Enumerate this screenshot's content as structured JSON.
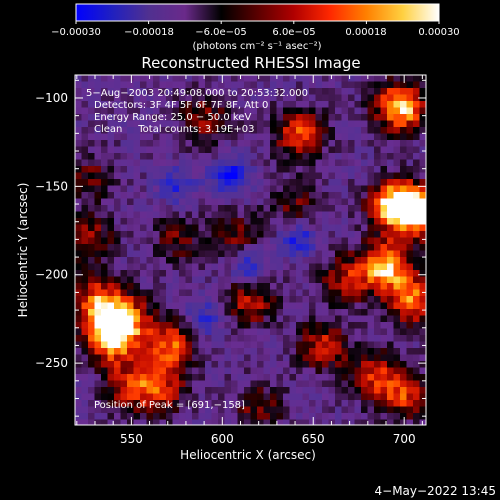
{
  "chart_data": {
    "type": "heatmap",
    "title": "Reconstructed RHESSI Image",
    "xlabel": "Heliocentric X (arcsec)",
    "ylabel": "Heliocentric Y (arcsec)",
    "xlim": [
      519,
      712
    ],
    "ylim": [
      -285,
      -87
    ],
    "x_ticks": [
      550,
      600,
      650,
      700
    ],
    "y_ticks": [
      -100,
      -150,
      -200,
      -250
    ],
    "x_tick_labels": [
      "550",
      "600",
      "650",
      "700"
    ],
    "y_tick_labels": [
      "−100",
      "−150",
      "−200",
      "−250"
    ],
    "colorbar": {
      "range": [
        -0.0003,
        0.0003
      ],
      "tick_labels": [
        "−0.00030",
        "−0.00018",
        "−6.0e−05",
        "6.0e−05",
        "0.00018",
        "0.00030"
      ],
      "unit_label": "(photons cm⁻² s⁻¹ asec⁻²)",
      "colors": [
        "#0000ff",
        "#2020c0",
        "#503090",
        "#6a2a8a",
        "#000000",
        "#5a0000",
        "#b00000",
        "#ff2800",
        "#ff8000",
        "#ffd040",
        "#ffffff"
      ]
    },
    "annotations": [
      "5−Aug−2003 20:49:08.000 to 20:53:32.000",
      "Detectors: 3F 4F 5F 6F 7F 8F, Att 0",
      "Energy Range: 25.0 − 50.0 keV",
      "Clean     Total counts: 3.19E+03"
    ],
    "peak_label": "Position of Peak = [691,−158]",
    "peak": [
      691,
      -158
    ],
    "bright_sources": [
      [
        698,
        -105,
        1.0
      ],
      [
        643,
        -120,
        0.7
      ],
      [
        695,
        -160,
        1.0
      ],
      [
        708,
        -165,
        0.85
      ],
      [
        690,
        -195,
        0.9
      ],
      [
        705,
        -215,
        0.75
      ],
      [
        532,
        -215,
        0.7
      ],
      [
        538,
        -235,
        0.95
      ],
      [
        548,
        -225,
        0.6
      ],
      [
        572,
        -240,
        0.7
      ],
      [
        565,
        -265,
        0.6
      ],
      [
        615,
        -215,
        0.55
      ],
      [
        655,
        -240,
        0.55
      ],
      [
        590,
        -112,
        0.45
      ],
      [
        608,
        -178,
        0.4
      ],
      [
        528,
        -145,
        0.35
      ],
      [
        683,
        -257,
        0.55
      ],
      [
        700,
        -268,
        0.6
      ],
      [
        620,
        -275,
        0.4
      ],
      [
        548,
        -262,
        0.5
      ],
      [
        668,
        -203,
        0.5
      ],
      [
        640,
        -160,
        0.35
      ],
      [
        575,
        -180,
        0.35
      ],
      [
        526,
        -180,
        0.5
      ]
    ],
    "dim_sources": [
      [
        604,
        -145,
        0.6
      ],
      [
        614,
        -195,
        0.5
      ],
      [
        575,
        -150,
        0.35
      ],
      [
        642,
        -180,
        0.45
      ],
      [
        590,
        -225,
        0.4
      ]
    ]
  },
  "timestamp": "4−May−2022 13:45"
}
